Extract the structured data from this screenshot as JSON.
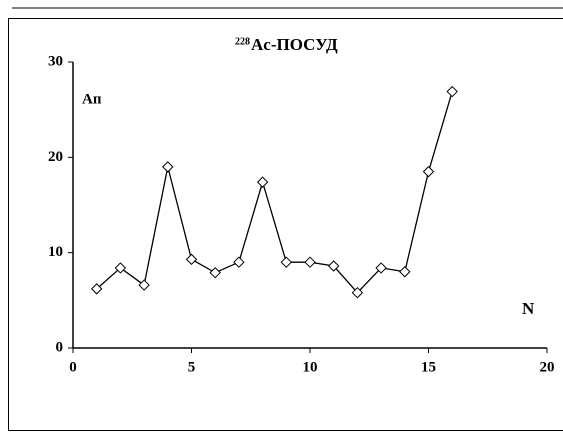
{
  "chart_data": {
    "type": "line",
    "title_superscript": "228",
    "title": "Ac-ПОСУД",
    "y_label": "Ап",
    "x_label": "N",
    "x": [
      1,
      2,
      3,
      4,
      5,
      6,
      7,
      8,
      9,
      10,
      11,
      12,
      13,
      14,
      15,
      16
    ],
    "series": [
      {
        "color": "#000000",
        "values": [
          6.2,
          8.4,
          6.6,
          19.0,
          9.3,
          7.9,
          9.0,
          17.4,
          9.0,
          9.0,
          8.6,
          5.8,
          8.4,
          8.0,
          18.5,
          26.9
        ]
      }
    ],
    "xlim": [
      0,
      20
    ],
    "xticks": [
      0,
      5,
      10,
      15,
      20
    ],
    "ylim": [
      0,
      30
    ],
    "yticks": [
      0,
      10,
      20,
      30
    ]
  }
}
